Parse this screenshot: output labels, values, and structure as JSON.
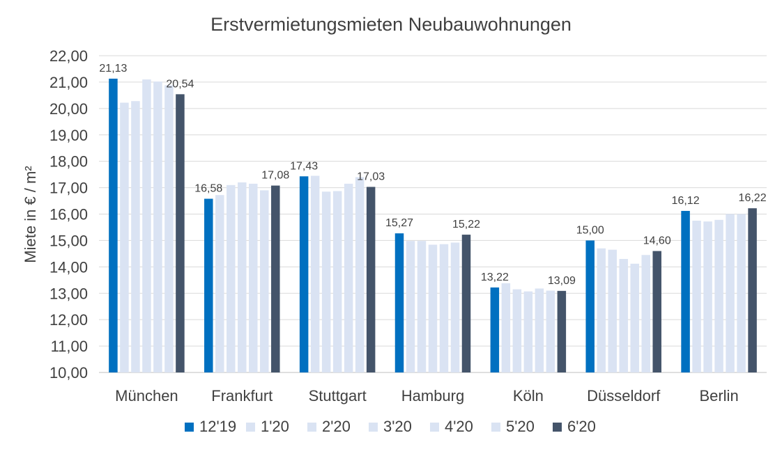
{
  "chart_data": {
    "type": "bar",
    "title": "Erstvermietungsmieten Neubauwohnungen",
    "xlabel": "",
    "ylabel": "Miete in € / m²",
    "ylim": [
      10,
      22
    ],
    "yticks": [
      "10,00",
      "11,00",
      "12,00",
      "13,00",
      "14,00",
      "15,00",
      "16,00",
      "17,00",
      "18,00",
      "19,00",
      "20,00",
      "21,00",
      "22,00"
    ],
    "grid": true,
    "legend_position": "bottom",
    "categories": [
      "München",
      "Frankfurt",
      "Stuttgart",
      "Hamburg",
      "Köln",
      "Düsseldorf",
      "Berlin"
    ],
    "series": [
      {
        "name": "12'19",
        "color": "#0070c0",
        "values": [
          21.13,
          16.58,
          17.43,
          15.27,
          13.22,
          15.0,
          16.12
        ],
        "labels": [
          "21,13",
          "16,58",
          "17,43",
          "15,27",
          "13,22",
          "15,00",
          "16,12"
        ]
      },
      {
        "name": "1'20",
        "color": "#dae3f3",
        "values": [
          20.22,
          16.72,
          17.45,
          14.98,
          13.38,
          14.7,
          15.75
        ]
      },
      {
        "name": "2'20",
        "color": "#dae3f3",
        "values": [
          20.28,
          17.1,
          16.85,
          14.98,
          13.15,
          14.65,
          15.72
        ]
      },
      {
        "name": "3'20",
        "color": "#dae3f3",
        "values": [
          21.1,
          17.2,
          16.87,
          14.84,
          13.07,
          14.3,
          15.78
        ]
      },
      {
        "name": "4'20",
        "color": "#dae3f3",
        "values": [
          21.02,
          17.15,
          17.15,
          14.86,
          13.18,
          14.12,
          16.0
        ]
      },
      {
        "name": "5'20",
        "color": "#dae3f3",
        "values": [
          20.88,
          16.9,
          17.4,
          14.92,
          13.1,
          14.45,
          16.0
        ]
      },
      {
        "name": "6'20",
        "color": "#44546a",
        "values": [
          20.54,
          17.08,
          17.03,
          15.22,
          13.09,
          14.6,
          16.22
        ],
        "labels": [
          "20,54",
          "17,08",
          "17,03",
          "15,22",
          "13,09",
          "14,60",
          "16,22"
        ]
      }
    ]
  }
}
